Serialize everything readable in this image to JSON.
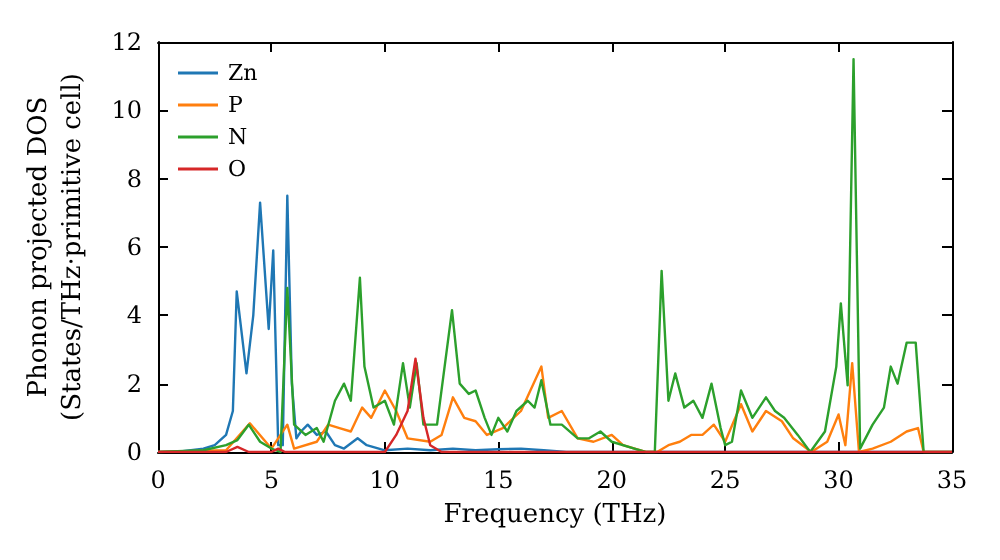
{
  "chart_data": {
    "type": "line",
    "xlabel": "Frequency (THz)",
    "ylabel": "Phonon projected DOS\n(States/THz·primitive cell)",
    "xlim": [
      0,
      35
    ],
    "ylim": [
      0,
      12
    ],
    "xticks": [
      0,
      5,
      10,
      15,
      20,
      25,
      30,
      35
    ],
    "yticks": [
      0,
      2,
      4,
      6,
      8,
      10,
      12
    ],
    "grid": false,
    "legend": "top left",
    "marker": "none",
    "line_style": "solid",
    "series": [
      {
        "name": "Zn",
        "color": "#1f77b4",
        "x": [
          0,
          1,
          2,
          2.5,
          3,
          3.3,
          3.47,
          3.9,
          4.2,
          4.5,
          4.88,
          5.08,
          5.3,
          5.5,
          5.7,
          5.9,
          6.1,
          6.3,
          6.6,
          7,
          7.4,
          7.8,
          8.2,
          8.8,
          9.2,
          10,
          11,
          12,
          13,
          14,
          15,
          16,
          17,
          18,
          35
        ],
        "values": [
          0,
          0.02,
          0.1,
          0.2,
          0.5,
          1.2,
          4.7,
          2.3,
          4,
          7.3,
          3.6,
          5.9,
          0.2,
          0.2,
          7.5,
          2,
          0.4,
          0.6,
          0.8,
          0.5,
          0.6,
          0.2,
          0.1,
          0.4,
          0.2,
          0.05,
          0.1,
          0.05,
          0.1,
          0.05,
          0.08,
          0.1,
          0.05,
          0,
          0
        ]
      },
      {
        "name": "P",
        "color": "#ff7f0e",
        "x": [
          0,
          3,
          4.05,
          5,
          5.7,
          6,
          7,
          7.5,
          8,
          8.5,
          9,
          9.4,
          10,
          10.5,
          11,
          12,
          12.5,
          13,
          13.5,
          14,
          14.5,
          15.2,
          16,
          16.9,
          17.2,
          17.8,
          18.5,
          19.2,
          20,
          20.5,
          21.5,
          22,
          22.5,
          23,
          23.5,
          24,
          24.5,
          25,
          25.7,
          26.2,
          26.8,
          27.5,
          28,
          28.8,
          29.5,
          30,
          30.3,
          30.6,
          30.9,
          31.5,
          32.3,
          33,
          33.5,
          33.75,
          35
        ],
        "values": [
          0,
          0.05,
          0.84,
          0.1,
          0.8,
          0.1,
          0.3,
          0.8,
          0.7,
          0.6,
          1.3,
          1,
          1.8,
          1.2,
          0.4,
          0.3,
          0.5,
          1.6,
          1,
          0.9,
          0.5,
          0.7,
          1.2,
          2.5,
          1,
          1.2,
          0.4,
          0.3,
          0.5,
          0.2,
          0,
          0,
          0.2,
          0.3,
          0.5,
          0.5,
          0.8,
          0.3,
          1.4,
          0.6,
          1.2,
          0.9,
          0.4,
          0,
          0.3,
          1.1,
          0.2,
          2.6,
          0,
          0.1,
          0.3,
          0.6,
          0.7,
          0,
          0
        ]
      },
      {
        "name": "N",
        "color": "#2ca02c",
        "x": [
          0,
          2,
          3,
          3.5,
          4,
          4.5,
          5,
          5.4,
          5.7,
          6,
          6.5,
          7,
          7.3,
          7.8,
          8.2,
          8.5,
          8.9,
          9.1,
          9.5,
          10,
          10.4,
          10.8,
          11.1,
          11.4,
          11.7,
          12.3,
          12.96,
          13.3,
          13.7,
          14,
          14.4,
          14.7,
          15,
          15.4,
          15.8,
          16.3,
          16.6,
          16.9,
          17.3,
          17.8,
          18.5,
          19,
          19.5,
          20,
          21,
          21.5,
          21.9,
          22.2,
          22.5,
          22.8,
          23.2,
          23.6,
          24,
          24.4,
          24.8,
          25,
          25.3,
          25.7,
          26.2,
          26.8,
          27.2,
          27.6,
          28.2,
          28.75,
          29.4,
          29.9,
          30.1,
          30.4,
          30.66,
          30.95,
          31.5,
          32,
          32.3,
          32.6,
          33,
          33.4,
          33.75,
          35
        ],
        "values": [
          0,
          0.05,
          0.2,
          0.35,
          0.8,
          0.3,
          0.1,
          0,
          4.8,
          0.8,
          0.5,
          0.7,
          0.3,
          1.5,
          2,
          1.5,
          5.1,
          2.5,
          1.3,
          1.5,
          0.8,
          2.6,
          1.3,
          2.6,
          0.8,
          0.8,
          4.15,
          2,
          1.7,
          1.8,
          1,
          0.5,
          1,
          0.6,
          1.2,
          1.5,
          1.3,
          2.1,
          0.8,
          0.8,
          0.4,
          0.4,
          0.6,
          0.3,
          0.1,
          0,
          0,
          5.3,
          1.5,
          2.3,
          1.3,
          1.5,
          1,
          2,
          0.7,
          0.2,
          0.3,
          1.8,
          1,
          1.6,
          1.2,
          1,
          0.5,
          0,
          0.6,
          2.5,
          4.35,
          1.95,
          11.5,
          0.1,
          0.8,
          1.3,
          2.5,
          2,
          3.2,
          3.2,
          0,
          0
        ]
      },
      {
        "name": "O",
        "color": "#d62728",
        "x": [
          0,
          3,
          3.5,
          4,
          5,
          5.3,
          5.6,
          10,
          10.5,
          11,
          11.35,
          11.7,
          12,
          12.5,
          35
        ],
        "values": [
          0,
          0,
          0.15,
          0,
          0,
          0.1,
          0,
          0,
          0.5,
          1.2,
          2.73,
          1,
          0.2,
          0,
          0
        ]
      }
    ]
  }
}
